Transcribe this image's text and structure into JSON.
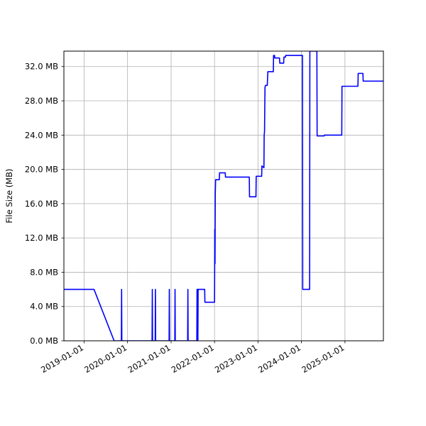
{
  "chart_data": {
    "type": "line",
    "title": "",
    "xlabel": "",
    "ylabel": "File Size (MB)",
    "grid": true,
    "legend": "none",
    "line_color": "#0000ff",
    "xlim": [
      "2018-07-15",
      "2025-11-20"
    ],
    "ylim": [
      0,
      33.8
    ],
    "x_ticks": [
      "2019-01-01",
      "2020-01-01",
      "2021-01-01",
      "2022-01-01",
      "2023-01-01",
      "2024-01-01",
      "2025-01-01"
    ],
    "y_ticks": [
      0,
      4,
      8,
      12,
      16,
      20,
      24,
      28,
      32
    ],
    "y_tick_labels": [
      "0.0 MB",
      "4.0 MB",
      "8.0 MB",
      "12.0 MB",
      "16.0 MB",
      "20.0 MB",
      "24.0 MB",
      "28.0 MB",
      "32.0 MB"
    ],
    "series": [
      {
        "x": [
          "2018-07-15",
          "2019-03-25",
          "2019-09-10",
          "2019-11-10",
          "2019-11-12",
          "2019-11-14",
          "2020-07-25",
          "2020-07-27",
          "2020-07-29",
          "2020-08-20",
          "2020-08-22",
          "2020-08-24",
          "2020-12-15",
          "2020-12-17",
          "2020-12-19",
          "2021-02-01",
          "2021-02-03",
          "2021-02-05",
          "2021-05-20",
          "2021-05-22",
          "2021-05-24",
          "2021-08-05",
          "2021-08-07",
          "2021-08-12",
          "2021-08-14",
          "2021-08-16",
          "2021-08-18",
          "2021-08-20",
          "2021-10-10",
          "2021-10-12",
          "2022-01-01",
          "2022-01-03",
          "2022-01-05",
          "2022-01-07",
          "2022-01-10",
          "2022-01-15",
          "2022-02-10",
          "2022-02-12",
          "2022-04-01",
          "2022-04-03",
          "2022-10-20",
          "2022-10-22",
          "2022-12-15",
          "2022-12-17",
          "2023-02-01",
          "2023-02-03",
          "2023-02-20",
          "2023-02-22",
          "2023-02-25",
          "2023-03-01",
          "2023-03-05",
          "2023-03-20",
          "2023-03-25",
          "2023-05-10",
          "2023-05-12",
          "2023-05-20",
          "2023-05-22",
          "2023-07-01",
          "2023-07-03",
          "2023-08-05",
          "2023-08-07",
          "2023-08-20",
          "2023-08-22",
          "2024-01-10",
          "2024-01-12",
          "2024-03-10",
          "2024-03-12",
          "2024-05-10",
          "2024-05-12",
          "2024-07-10",
          "2024-07-12",
          "2024-12-05",
          "2024-12-07",
          "2025-04-20",
          "2025-04-22",
          "2025-06-01",
          "2025-06-03",
          "2025-11-20"
        ],
        "y": [
          6.0,
          6.0,
          0.0,
          0.0,
          6.0,
          0.0,
          0.0,
          6.0,
          0.0,
          0.0,
          6.0,
          0.0,
          0.0,
          6.0,
          0.0,
          0.0,
          6.0,
          0.0,
          0.0,
          6.0,
          0.0,
          0.0,
          6.0,
          6.0,
          0.0,
          6.0,
          6.0,
          6.0,
          6.0,
          4.5,
          4.5,
          13.0,
          9.0,
          17.0,
          18.8,
          18.8,
          18.8,
          19.6,
          19.6,
          19.1,
          19.1,
          16.8,
          16.8,
          19.2,
          19.2,
          20.4,
          20.2,
          24.0,
          24.4,
          29.6,
          29.8,
          29.8,
          31.4,
          31.4,
          33.3,
          33.3,
          33.0,
          33.0,
          32.4,
          32.4,
          33.1,
          33.1,
          33.3,
          33.3,
          6.0,
          6.0,
          33.8,
          33.8,
          23.9,
          23.9,
          24.0,
          24.0,
          29.7,
          29.7,
          31.2,
          31.2,
          30.3,
          30.3
        ]
      }
    ]
  }
}
